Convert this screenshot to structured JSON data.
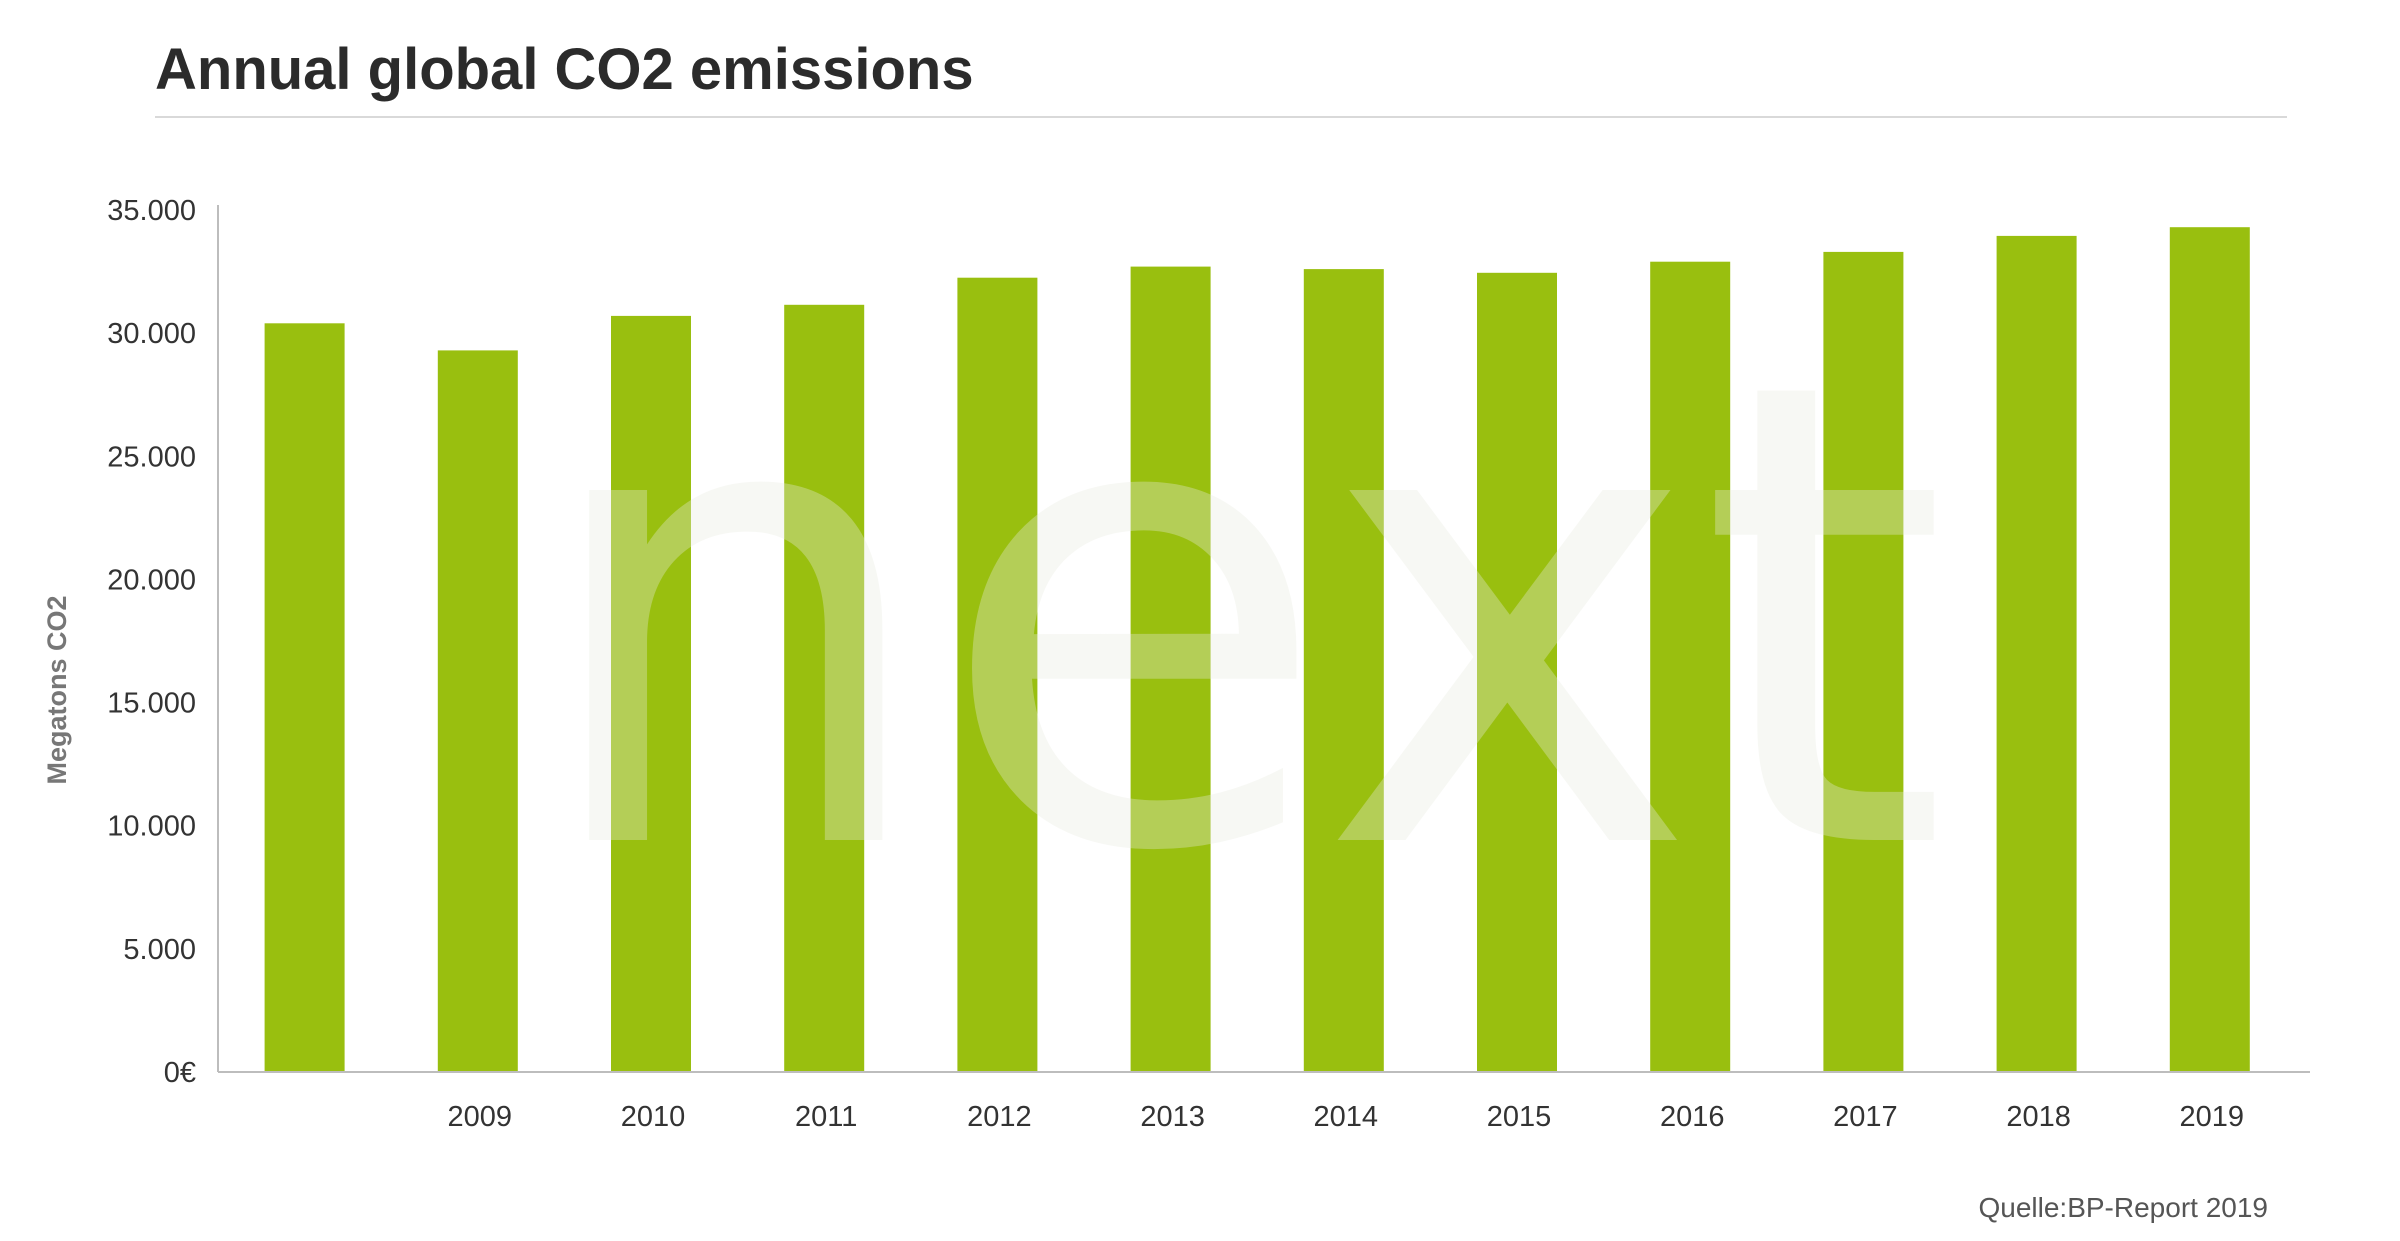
{
  "title": "Annual global CO2 emissions",
  "source": "Quelle:BP-Report 2019",
  "watermark": "next",
  "colors": {
    "bar": "#99bf0f",
    "axis": "#bdbdbd",
    "tick_text": "#333333",
    "ylabel_text": "#777777",
    "watermark": "#e9ecdf"
  },
  "chart_data": {
    "type": "bar",
    "title": "Annual global CO2 emissions",
    "xlabel": "",
    "ylabel": "Megatons CO2",
    "categories": [
      "",
      "2009",
      "2010",
      "2011",
      "2012",
      "2013",
      "2014",
      "2015",
      "2016",
      "2017",
      "2018",
      "2019"
    ],
    "values": [
      30400,
      29300,
      30700,
      31150,
      32250,
      32700,
      32600,
      32450,
      32900,
      33300,
      33950,
      34300
    ],
    "ylim": [
      0,
      35000
    ],
    "yticks": [
      0,
      5000,
      10000,
      15000,
      20000,
      25000,
      30000,
      35000
    ],
    "ytick_labels": [
      "0€",
      "5.000",
      "10.000",
      "15.000",
      "20.000",
      "25.000",
      "30.000",
      "35.000"
    ],
    "grid": false,
    "legend": "none"
  }
}
